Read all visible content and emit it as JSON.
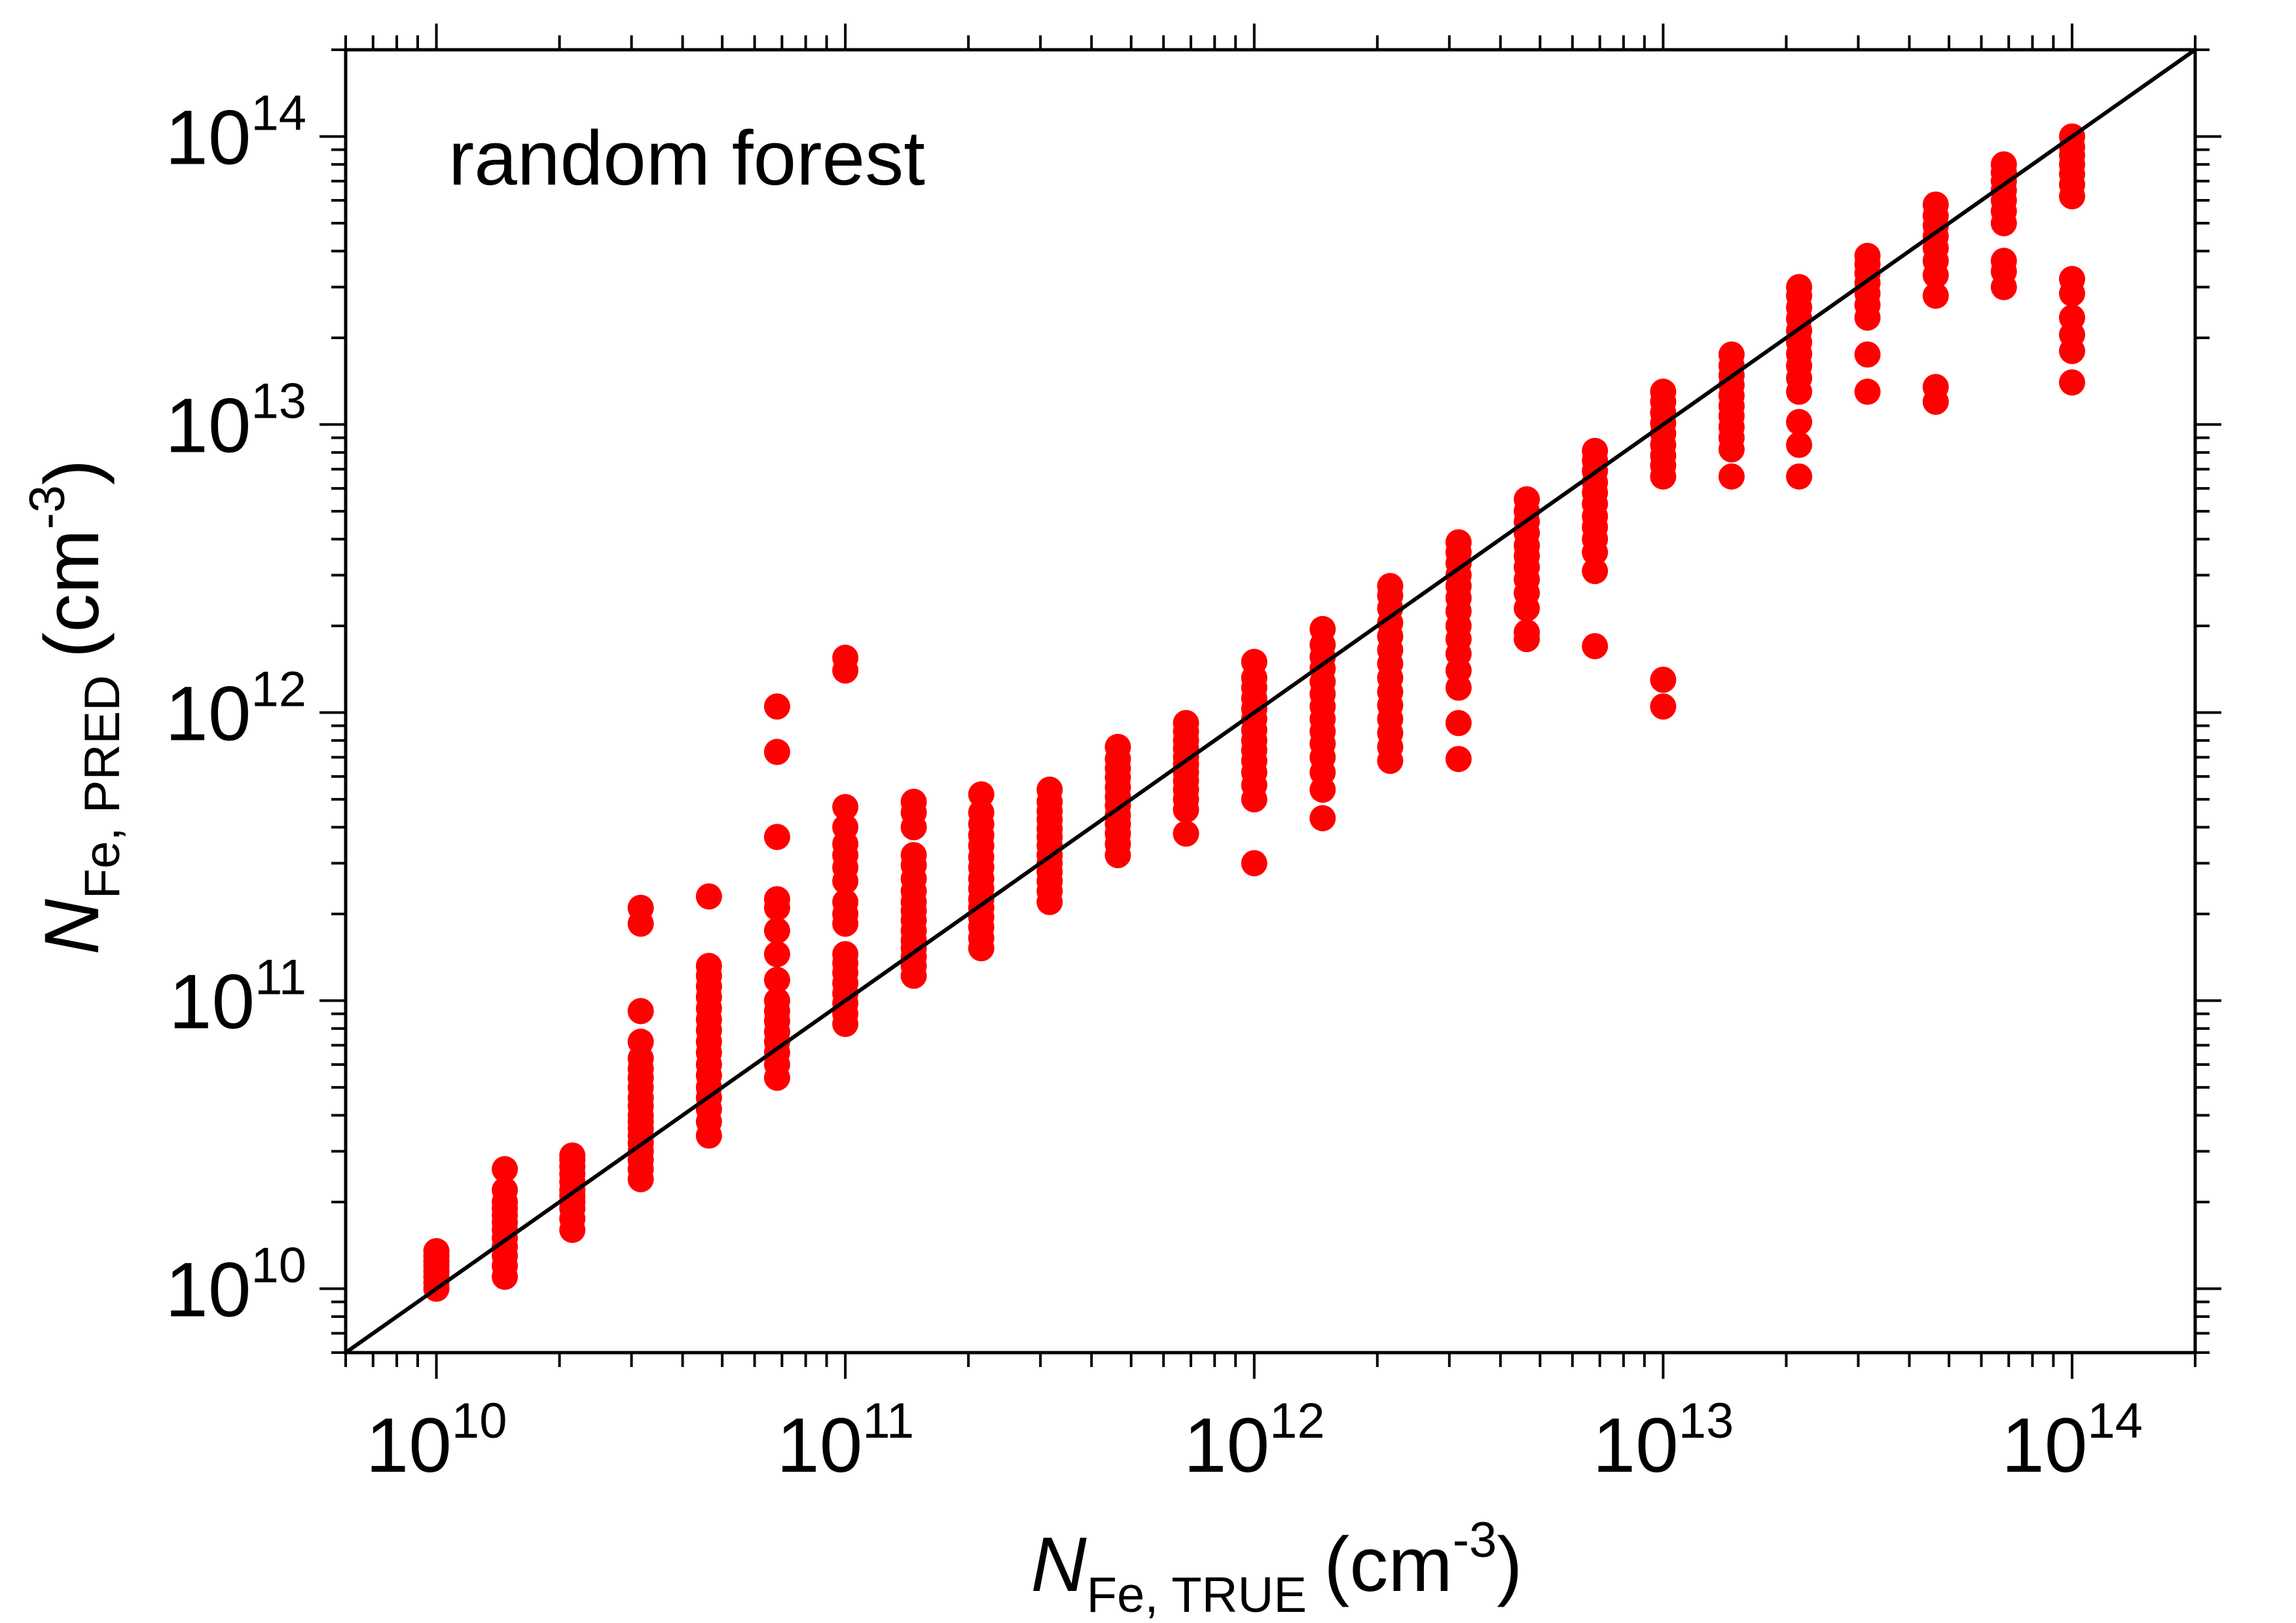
{
  "chart_data": {
    "type": "scatter",
    "annotation": "random forest",
    "xlabel": {
      "symbol": "N",
      "subscript": "Fe, TRUE",
      "unit_open": "(cm",
      "unit_exp": "-3",
      "unit_close": ")"
    },
    "ylabel": {
      "symbol": "N",
      "subscript": "Fe, PRED",
      "unit_open": "(cm",
      "unit_exp": "-3",
      "unit_close": ")"
    },
    "x_scale": "log",
    "y_scale": "log",
    "xlim": [
      6000000000.0,
      200000000000000.0
    ],
    "ylim": [
      6000000000.0,
      200000000000000.0
    ],
    "x_ticks": [
      {
        "base": "10",
        "exp": "10",
        "value": 10000000000.0
      },
      {
        "base": "10",
        "exp": "11",
        "value": 100000000000.0
      },
      {
        "base": "10",
        "exp": "12",
        "value": 1000000000000.0
      },
      {
        "base": "10",
        "exp": "13",
        "value": 10000000000000.0
      },
      {
        "base": "10",
        "exp": "14",
        "value": 100000000000000.0
      }
    ],
    "y_ticks": [
      {
        "base": "10",
        "exp": "10",
        "value": 10000000000.0
      },
      {
        "base": "10",
        "exp": "11",
        "value": 100000000000.0
      },
      {
        "base": "10",
        "exp": "12",
        "value": 1000000000000.0
      },
      {
        "base": "10",
        "exp": "13",
        "value": 10000000000000.0
      },
      {
        "base": "10",
        "exp": "14",
        "value": 100000000000000.0
      }
    ],
    "grid": false,
    "reference_line": {
      "label": "y = x",
      "color": "#000000"
    },
    "series_color": "#ff0000",
    "groups": [
      {
        "x": 10000000000.0,
        "y": [
          10000000000.0,
          10500000000.0,
          11000000000.0,
          11500000000.0,
          12000000000.0,
          12500000000.0,
          13000000000.0,
          13500000000.0
        ]
      },
      {
        "x": 14700000000.0,
        "y": [
          11000000000.0,
          12000000000.0,
          13000000000.0,
          14000000000.0,
          15000000000.0,
          16000000000.0,
          17000000000.0,
          18000000000.0,
          19000000000.0,
          20000000000.0,
          22000000000.0,
          26000000000.0
        ]
      },
      {
        "x": 21500000000.0,
        "y": [
          16000000000.0,
          17500000000.0,
          19000000000.0,
          20000000000.0,
          21000000000.0,
          22000000000.0,
          23500000000.0,
          25000000000.0,
          26500000000.0,
          28000000000.0,
          29000000000.0
        ]
      },
      {
        "x": 31600000000.0,
        "y": [
          24000000000.0,
          26000000000.0,
          28000000000.0,
          30000000000.0,
          32000000000.0,
          34000000000.0,
          36000000000.0,
          38000000000.0,
          40000000000.0,
          43000000000.0,
          46000000000.0,
          50000000000.0,
          54000000000.0,
          58000000000.0,
          63000000000.0,
          72000000000.0,
          92000000000.0,
          185000000000.0,
          210000000000.0
        ]
      },
      {
        "x": 46400000000.0,
        "y": [
          34000000000.0,
          38000000000.0,
          42000000000.0,
          46000000000.0,
          50000000000.0,
          55000000000.0,
          60000000000.0,
          66000000000.0,
          72000000000.0,
          79000000000.0,
          86000000000.0,
          94000000000.0,
          103000000000.0,
          112000000000.0,
          122000000000.0,
          132000000000.0,
          230000000000.0
        ]
      },
      {
        "x": 68100000000.0,
        "y": [
          54000000000.0,
          60000000000.0,
          66000000000.0,
          72000000000.0,
          78000000000.0,
          85000000000.0,
          92000000000.0,
          100000000000.0,
          118000000000.0,
          145000000000.0,
          175000000000.0,
          210000000000.0,
          225000000000.0,
          370000000000.0,
          730000000000.0,
          1050000000000.0
        ]
      },
      {
        "x": 100000000000.0,
        "y": [
          83000000000.0,
          90000000000.0,
          98000000000.0,
          106000000000.0,
          115000000000.0,
          125000000000.0,
          135000000000.0,
          145000000000.0,
          185000000000.0,
          200000000000.0,
          220000000000.0,
          260000000000.0,
          290000000000.0,
          320000000000.0,
          350000000000.0,
          400000000000.0,
          470000000000.0,
          1400000000000.0,
          1550000000000.0
        ]
      },
      {
        "x": 147000000000.0,
        "y": [
          122000000000.0,
          132000000000.0,
          142000000000.0,
          152000000000.0,
          162000000000.0,
          175000000000.0,
          190000000000.0,
          205000000000.0,
          220000000000.0,
          240000000000.0,
          265000000000.0,
          295000000000.0,
          320000000000.0,
          400000000000.0,
          450000000000.0,
          490000000000.0
        ]
      },
      {
        "x": 215000000000.0,
        "y": [
          152000000000.0,
          165000000000.0,
          180000000000.0,
          195000000000.0,
          210000000000.0,
          225000000000.0,
          245000000000.0,
          265000000000.0,
          290000000000.0,
          315000000000.0,
          345000000000.0,
          375000000000.0,
          410000000000.0,
          450000000000.0,
          520000000000.0
        ]
      },
      {
        "x": 316000000000.0,
        "y": [
          220000000000.0,
          240000000000.0,
          260000000000.0,
          280000000000.0,
          300000000000.0,
          320000000000.0,
          345000000000.0,
          370000000000.0,
          395000000000.0,
          425000000000.0,
          455000000000.0,
          490000000000.0,
          540000000000.0
        ]
      },
      {
        "x": 464000000000.0,
        "y": [
          320000000000.0,
          350000000000.0,
          380000000000.0,
          410000000000.0,
          440000000000.0,
          475000000000.0,
          510000000000.0,
          550000000000.0,
          595000000000.0,
          640000000000.0,
          690000000000.0,
          760000000000.0
        ]
      },
      {
        "x": 681000000000.0,
        "y": [
          380000000000.0,
          460000000000.0,
          500000000000.0,
          540000000000.0,
          580000000000.0,
          620000000000.0,
          660000000000.0,
          700000000000.0,
          750000000000.0,
          800000000000.0,
          860000000000.0,
          920000000000.0
        ]
      },
      {
        "x": 1000000000000.0,
        "y": [
          300000000000.0,
          500000000000.0,
          560000000000.0,
          620000000000.0,
          680000000000.0,
          740000000000.0,
          800000000000.0,
          870000000000.0,
          950000000000.0,
          1030000000000.0,
          1120000000000.0,
          1220000000000.0,
          1320000000000.0,
          1500000000000.0
        ]
      },
      {
        "x": 1470000000000.0,
        "y": [
          430000000000.0,
          540000000000.0,
          620000000000.0,
          700000000000.0,
          780000000000.0,
          860000000000.0,
          950000000000.0,
          1050000000000.0,
          1160000000000.0,
          1280000000000.0,
          1420000000000.0,
          1560000000000.0,
          1720000000000.0,
          1950000000000.0
        ]
      },
      {
        "x": 2150000000000.0,
        "y": [
          680000000000.0,
          760000000000.0,
          850000000000.0,
          950000000000.0,
          1060000000000.0,
          1180000000000.0,
          1320000000000.0,
          1480000000000.0,
          1650000000000.0,
          1840000000000.0,
          2050000000000.0,
          2300000000000.0,
          2550000000000.0,
          2750000000000.0
        ]
      },
      {
        "x": 3160000000000.0,
        "y": [
          690000000000.0,
          920000000000.0,
          1220000000000.0,
          1400000000000.0,
          1600000000000.0,
          1800000000000.0,
          2000000000000.0,
          2250000000000.0,
          2500000000000.0,
          2750000000000.0,
          3000000000000.0,
          3300000000000.0,
          3600000000000.0,
          3900000000000.0
        ]
      },
      {
        "x": 4640000000000.0,
        "y": [
          1800000000000.0,
          1900000000000.0,
          2300000000000.0,
          2600000000000.0,
          2900000000000.0,
          3200000000000.0,
          3500000000000.0,
          3800000000000.0,
          4200000000000.0,
          4600000000000.0,
          5000000000000.0,
          5500000000000.0
        ]
      },
      {
        "x": 6810000000000.0,
        "y": [
          1700000000000.0,
          3100000000000.0,
          3600000000000.0,
          4000000000000.0,
          4400000000000.0,
          4800000000000.0,
          5300000000000.0,
          5800000000000.0,
          6300000000000.0,
          6900000000000.0,
          7500000000000.0,
          8100000000000.0
        ]
      },
      {
        "x": 10000000000000.0,
        "y": [
          1050000000000.0,
          1300000000000.0,
          6600000000000.0,
          7200000000000.0,
          7800000000000.0,
          8500000000000.0,
          9300000000000.0,
          10100000000000.0,
          11000000000000.0,
          12000000000000.0,
          13000000000000.0
        ]
      },
      {
        "x": 14700000000000.0,
        "y": [
          6600000000000.0,
          8200000000000.0,
          9000000000000.0,
          9800000000000.0,
          10700000000000.0,
          11600000000000.0,
          12600000000000.0,
          13700000000000.0,
          14800000000000.0,
          16000000000000.0,
          17500000000000.0
        ]
      },
      {
        "x": 21500000000000.0,
        "y": [
          6600000000000.0,
          8500000000000.0,
          10200000000000.0,
          13000000000000.0,
          14500000000000.0,
          16000000000000.0,
          17600000000000.0,
          19300000000000.0,
          21200000000000.0,
          23300000000000.0,
          25500000000000.0,
          28000000000000.0,
          30000000000000.0
        ]
      },
      {
        "x": 31600000000000.0,
        "y": [
          13000000000000.0,
          17500000000000.0,
          23500000000000.0,
          26000000000000.0,
          28500000000000.0,
          31000000000000.0,
          33500000000000.0,
          36000000000000.0,
          38500000000000.0
        ]
      },
      {
        "x": 46400000000000.0,
        "y": [
          12000000000000.0,
          13500000000000.0,
          28000000000000.0,
          33000000000000.0,
          37000000000000.0,
          41000000000000.0,
          45000000000000.0,
          49000000000000.0,
          53000000000000.0,
          58000000000000.0
        ]
      },
      {
        "x": 68100000000000.0,
        "y": [
          30000000000000.0,
          34000000000000.0,
          37000000000000.0,
          50000000000000.0,
          55000000000000.0,
          60000000000000.0,
          65000000000000.0,
          70000000000000.0,
          75000000000000.0,
          80000000000000.0
        ]
      },
      {
        "x": 100000000000000.0,
        "y": [
          14000000000000.0,
          18000000000000.0,
          20500000000000.0,
          23500000000000.0,
          28500000000000.0,
          32000000000000.0,
          62000000000000.0,
          68000000000000.0,
          74000000000000.0,
          80000000000000.0,
          86000000000000.0,
          92000000000000.0,
          100000000000000.0
        ]
      }
    ]
  }
}
